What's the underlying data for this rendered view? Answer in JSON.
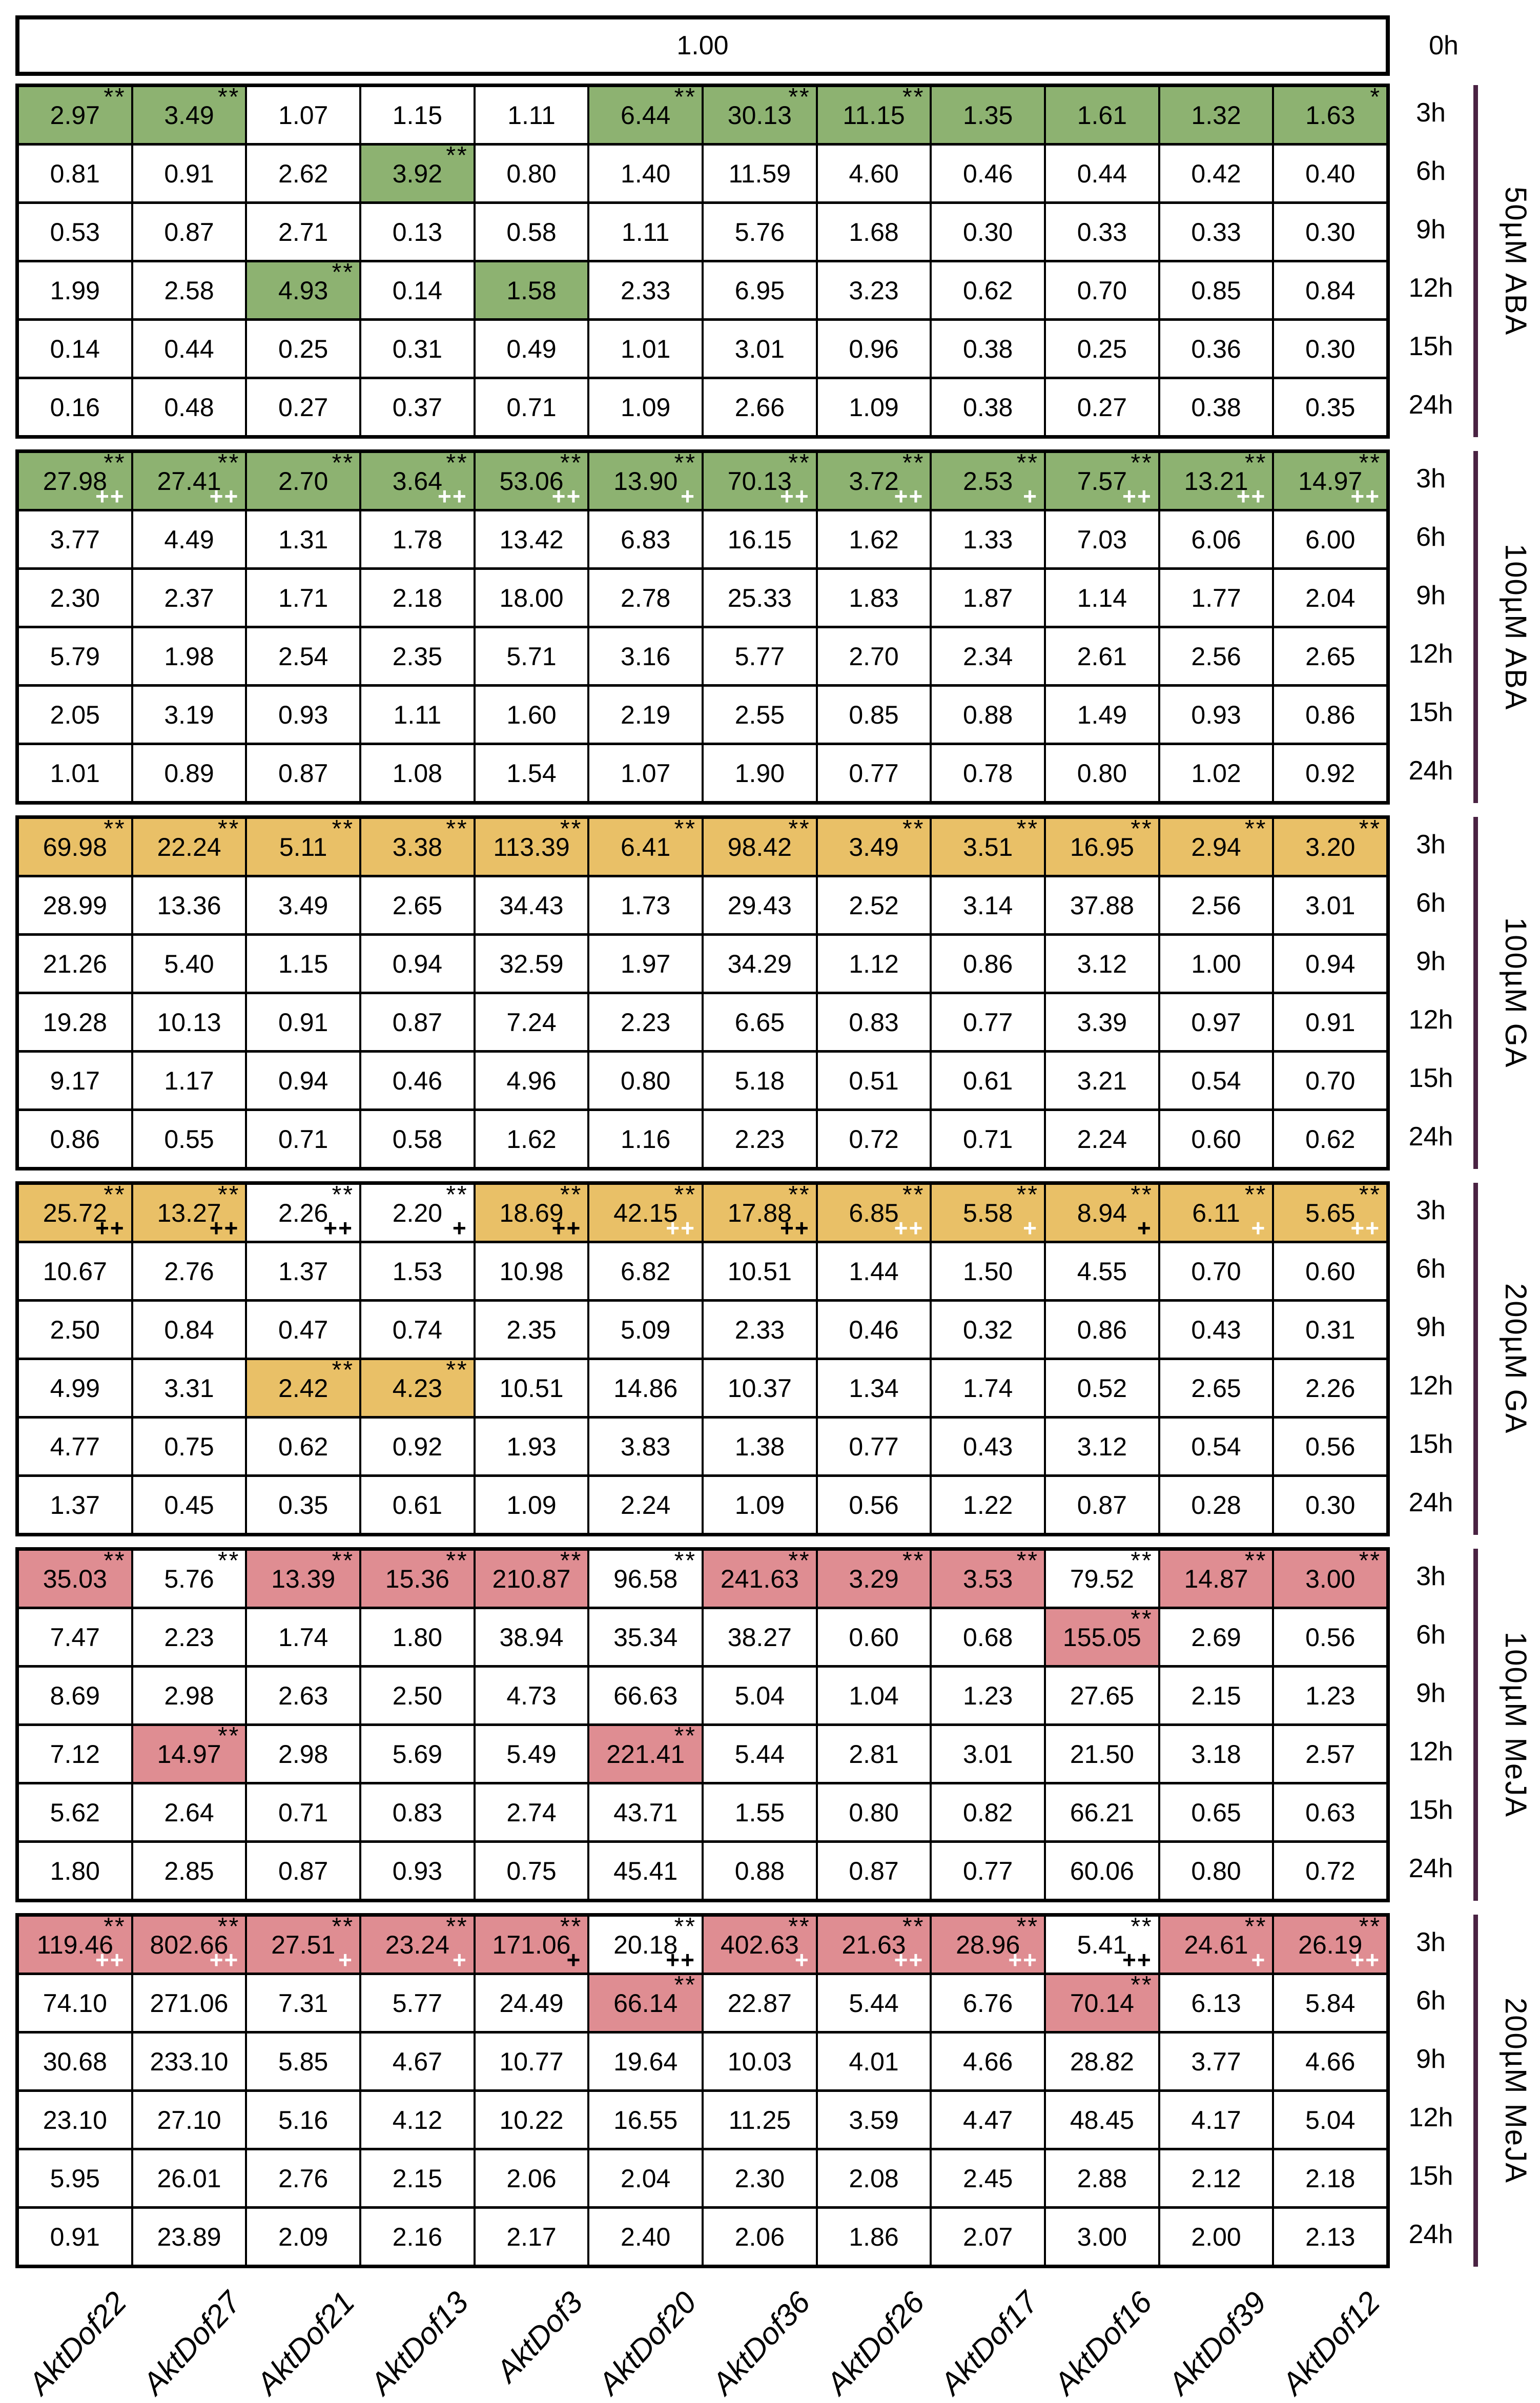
{
  "figure": {
    "description_visible_text_only": true,
    "control_label": "0h",
    "control_value": "1.00"
  },
  "chart_data": {
    "type": "heatmap",
    "cell_format": "value|asterisks|bg(g=green,o=orange,r=red,empty=white)|plus(+ or ++ followed by w=white or b=black text)",
    "colors": {
      "green": "#8db271",
      "orange": "#e9c067",
      "red": "#df8d92",
      "bar": "#4a2343",
      "grid": "#000000",
      "background": "#ffffff"
    },
    "columns": [
      "AktDof22",
      "AktDof27",
      "AktDof21",
      "AktDof13",
      "AktDof3",
      "AktDof20",
      "AktDof36",
      "AktDof26",
      "AktDof17",
      "AktDof16",
      "AktDof39",
      "AktDof12"
    ],
    "control_row": {
      "label": "0h",
      "value": "1.00"
    },
    "time_labels": [
      "3h",
      "6h",
      "9h",
      "12h",
      "15h",
      "24h"
    ],
    "treatments": [
      {
        "name": "50µM ABA",
        "rows": [
          [
            "2.97|**|g",
            "3.49|**|g",
            "1.07",
            "1.15",
            "1.11",
            "6.44|**|g",
            "30.13|**|g",
            "11.15|**|g",
            "1.35||g",
            "1.61||g",
            "1.32||g",
            "1.63|*|g"
          ],
          [
            "0.81",
            "0.91",
            "2.62",
            "3.92|**|g",
            "0.80",
            "1.40",
            "11.59",
            "4.60",
            "0.46",
            "0.44",
            "0.42",
            "0.40"
          ],
          [
            "0.53",
            "0.87",
            "2.71",
            "0.13",
            "0.58",
            "1.11",
            "5.76",
            "1.68",
            "0.30",
            "0.33",
            "0.33",
            "0.30"
          ],
          [
            "1.99",
            "2.58",
            "4.93|**|g",
            "0.14",
            "1.58||g",
            "2.33",
            "6.95",
            "3.23",
            "0.62",
            "0.70",
            "0.85",
            "0.84"
          ],
          [
            "0.14",
            "0.44",
            "0.25",
            "0.31",
            "0.49",
            "1.01",
            "3.01",
            "0.96",
            "0.38",
            "0.25",
            "0.36",
            "0.30"
          ],
          [
            "0.16",
            "0.48",
            "0.27",
            "0.37",
            "0.71",
            "1.09",
            "2.66",
            "1.09",
            "0.38",
            "0.27",
            "0.38",
            "0.35"
          ]
        ]
      },
      {
        "name": "100µM ABA",
        "rows": [
          [
            "27.98|**|g|++w",
            "27.41|**|g|++w",
            "2.70|**|g",
            "3.64|**|g|++w",
            "53.06|**|g|++w",
            "13.90|**|g|+w",
            "70.13|**|g|++w",
            "3.72|**|g|++w",
            "2.53|**|g|+w",
            "7.57|**|g|++w",
            "13.21|**|g|++w",
            "14.97|**|g|++w"
          ],
          [
            "3.77",
            "4.49",
            "1.31",
            "1.78",
            "13.42",
            "6.83",
            "16.15",
            "1.62",
            "1.33",
            "7.03",
            "6.06",
            "6.00"
          ],
          [
            "2.30",
            "2.37",
            "1.71",
            "2.18",
            "18.00",
            "2.78",
            "25.33",
            "1.83",
            "1.87",
            "1.14",
            "1.77",
            "2.04"
          ],
          [
            "5.79",
            "1.98",
            "2.54",
            "2.35",
            "5.71",
            "3.16",
            "5.77",
            "2.70",
            "2.34",
            "2.61",
            "2.56",
            "2.65"
          ],
          [
            "2.05",
            "3.19",
            "0.93",
            "1.11",
            "1.60",
            "2.19",
            "2.55",
            "0.85",
            "0.88",
            "1.49",
            "0.93",
            "0.86"
          ],
          [
            "1.01",
            "0.89",
            "0.87",
            "1.08",
            "1.54",
            "1.07",
            "1.90",
            "0.77",
            "0.78",
            "0.80",
            "1.02",
            "0.92"
          ]
        ]
      },
      {
        "name": "100µM GA",
        "rows": [
          [
            "69.98|**|o",
            "22.24|**|o",
            "5.11|**|o",
            "3.38|**|o",
            "113.39|**|o",
            "6.41|**|o",
            "98.42|**|o",
            "3.49|**|o",
            "3.51|**|o",
            "16.95|**|o",
            "2.94|**|o",
            "3.20|**|o"
          ],
          [
            "28.99",
            "13.36",
            "3.49",
            "2.65",
            "34.43",
            "1.73",
            "29.43",
            "2.52",
            "3.14",
            "37.88",
            "2.56",
            "3.01"
          ],
          [
            "21.26",
            "5.40",
            "1.15",
            "0.94",
            "32.59",
            "1.97",
            "34.29",
            "1.12",
            "0.86",
            "3.12",
            "1.00",
            "0.94"
          ],
          [
            "19.28",
            "10.13",
            "0.91",
            "0.87",
            "7.24",
            "2.23",
            "6.65",
            "0.83",
            "0.77",
            "3.39",
            "0.97",
            "0.91"
          ],
          [
            "9.17",
            "1.17",
            "0.94",
            "0.46",
            "4.96",
            "0.80",
            "5.18",
            "0.51",
            "0.61",
            "3.21",
            "0.54",
            "0.70"
          ],
          [
            "0.86",
            "0.55",
            "0.71",
            "0.58",
            "1.62",
            "1.16",
            "2.23",
            "0.72",
            "0.71",
            "2.24",
            "0.60",
            "0.62"
          ]
        ]
      },
      {
        "name": "200µM GA",
        "rows": [
          [
            "25.72|**|o|++b",
            "13.27|**|o|++b",
            "2.26|**||++b",
            "2.20|**||+b",
            "18.69|**|o|++b",
            "42.15|**|o|++w",
            "17.88|**|o|++b",
            "6.85|**|o|++w",
            "5.58|**|o|+w",
            "8.94|**|o|+b",
            "6.11|**|o|+w",
            "5.65|**|o|++w"
          ],
          [
            "10.67",
            "2.76",
            "1.37",
            "1.53",
            "10.98",
            "6.82",
            "10.51",
            "1.44",
            "1.50",
            "4.55",
            "0.70",
            "0.60"
          ],
          [
            "2.50",
            "0.84",
            "0.47",
            "0.74",
            "2.35",
            "5.09",
            "2.33",
            "0.46",
            "0.32",
            "0.86",
            "0.43",
            "0.31"
          ],
          [
            "4.99",
            "3.31",
            "2.42|**|o",
            "4.23|**|o",
            "10.51",
            "14.86",
            "10.37",
            "1.34",
            "1.74",
            "0.52",
            "2.65",
            "2.26"
          ],
          [
            "4.77",
            "0.75",
            "0.62",
            "0.92",
            "1.93",
            "3.83",
            "1.38",
            "0.77",
            "0.43",
            "3.12",
            "0.54",
            "0.56"
          ],
          [
            "1.37",
            "0.45",
            "0.35",
            "0.61",
            "1.09",
            "2.24",
            "1.09",
            "0.56",
            "1.22",
            "0.87",
            "0.28",
            "0.30"
          ]
        ]
      },
      {
        "name": "100µM MeJA",
        "rows": [
          [
            "35.03|**|r",
            "5.76|**",
            "13.39|**|r",
            "15.36|**|r",
            "210.87|**|r",
            "96.58|**",
            "241.63|**|r",
            "3.29|**|r",
            "3.53|**|r",
            "79.52|**",
            "14.87|**|r",
            "3.00|**|r"
          ],
          [
            "7.47",
            "2.23",
            "1.74",
            "1.80",
            "38.94",
            "35.34",
            "38.27",
            "0.60",
            "0.68",
            "155.05|**|r",
            "2.69",
            "0.56"
          ],
          [
            "8.69",
            "2.98",
            "2.63",
            "2.50",
            "4.73",
            "66.63",
            "5.04",
            "1.04",
            "1.23",
            "27.65",
            "2.15",
            "1.23"
          ],
          [
            "7.12",
            "14.97|**|r",
            "2.98",
            "5.69",
            "5.49",
            "221.41|**|r",
            "5.44",
            "2.81",
            "3.01",
            "21.50",
            "3.18",
            "2.57"
          ],
          [
            "5.62",
            "2.64",
            "0.71",
            "0.83",
            "2.74",
            "43.71",
            "1.55",
            "0.80",
            "0.82",
            "66.21",
            "0.65",
            "0.63"
          ],
          [
            "1.80",
            "2.85",
            "0.87",
            "0.93",
            "0.75",
            "45.41",
            "0.88",
            "0.87",
            "0.77",
            "60.06",
            "0.80",
            "0.72"
          ]
        ]
      },
      {
        "name": "200µM MeJA",
        "rows": [
          [
            "119.46|**|r|++w",
            "802.66|**|r|++w",
            "27.51|**|r|+w",
            "23.24|**|r|+w",
            "171.06|**|r|+b",
            "20.18|**||++b",
            "402.63|**|r|+w",
            "21.63|**|r|++w",
            "28.96|**|r|++w",
            "5.41|**||++b",
            "24.61|**|r|+w",
            "26.19|**|r|++w"
          ],
          [
            "74.10",
            "271.06",
            "7.31",
            "5.77",
            "24.49",
            "66.14|**|r",
            "22.87",
            "5.44",
            "6.76",
            "70.14|**|r",
            "6.13",
            "5.84"
          ],
          [
            "30.68",
            "233.10",
            "5.85",
            "4.67",
            "10.77",
            "19.64",
            "10.03",
            "4.01",
            "4.66",
            "28.82",
            "3.77",
            "4.66"
          ],
          [
            "23.10",
            "27.10",
            "5.16",
            "4.12",
            "10.22",
            "16.55",
            "11.25",
            "3.59",
            "4.47",
            "48.45",
            "4.17",
            "5.04"
          ],
          [
            "5.95",
            "26.01",
            "2.76",
            "2.15",
            "2.06",
            "2.04",
            "2.30",
            "2.08",
            "2.45",
            "2.88",
            "2.12",
            "2.18"
          ],
          [
            "0.91",
            "23.89",
            "2.09",
            "2.16",
            "2.17",
            "2.40",
            "2.06",
            "1.86",
            "2.07",
            "3.00",
            "2.00",
            "2.13"
          ]
        ]
      }
    ]
  }
}
